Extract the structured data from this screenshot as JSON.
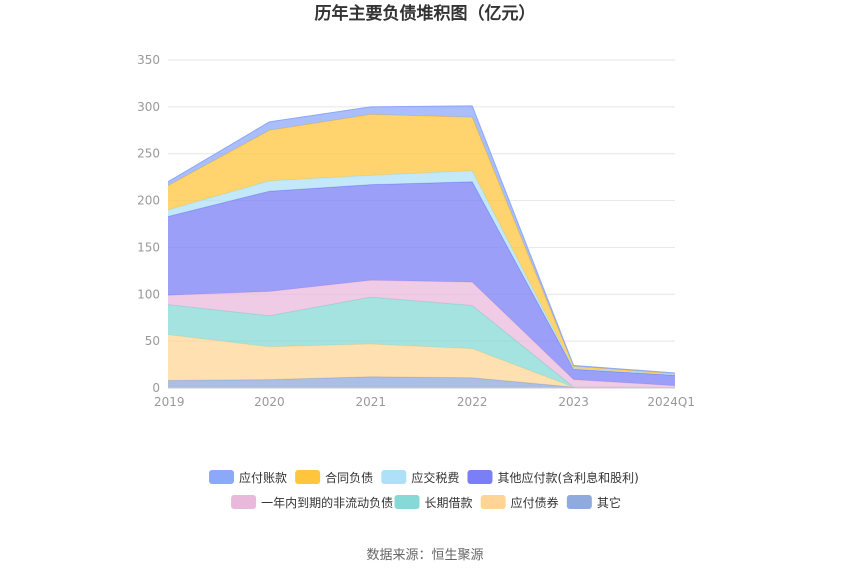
{
  "chart_data": {
    "type": "area",
    "title": "历年主要负债堆积图（亿元）",
    "xlabel": "",
    "ylabel": "",
    "categories": [
      "2019",
      "2020",
      "2021",
      "2022",
      "2023",
      "2024Q1"
    ],
    "ylim": [
      0,
      350
    ],
    "yticks": [
      0,
      50,
      100,
      150,
      200,
      250,
      300,
      350
    ],
    "grid": true,
    "legend_position": "bottom",
    "stacked": true,
    "series": [
      {
        "name": "其它",
        "color": "#8faadc",
        "values": [
          8,
          9,
          12,
          11,
          1,
          0.5
        ]
      },
      {
        "name": "应付债券",
        "color": "#ffd596",
        "values": [
          49,
          35,
          35,
          31,
          0,
          0
        ]
      },
      {
        "name": "长期借款",
        "color": "#86d9d6",
        "values": [
          32,
          33,
          50,
          46,
          0,
          0
        ]
      },
      {
        "name": "一年内到期的非流动负债",
        "color": "#e9b9dc",
        "values": [
          10,
          26,
          18,
          25,
          8,
          2
        ]
      },
      {
        "name": "其他应付款(含利息和股利)",
        "color": "#7b7ff5",
        "values": [
          84,
          107,
          102,
          107,
          11,
          11
        ]
      },
      {
        "name": "应交税费",
        "color": "#aee0f7",
        "values": [
          7,
          11,
          10,
          12,
          1,
          1
        ]
      },
      {
        "name": "合同负债",
        "color": "#ffc53d",
        "values": [
          26,
          54,
          65,
          57,
          2,
          1
        ]
      },
      {
        "name": "应付账款",
        "color": "#8ca8f8",
        "values": [
          4,
          9,
          8,
          12,
          1,
          0.5
        ]
      }
    ],
    "legend_order": [
      "应付账款",
      "合同负债",
      "应交税费",
      "其他应付款(含利息和股利)",
      "一年内到期的非流动负债",
      "长期借款",
      "应付债券",
      "其它"
    ]
  },
  "source_text": "数据来源：恒生聚源"
}
